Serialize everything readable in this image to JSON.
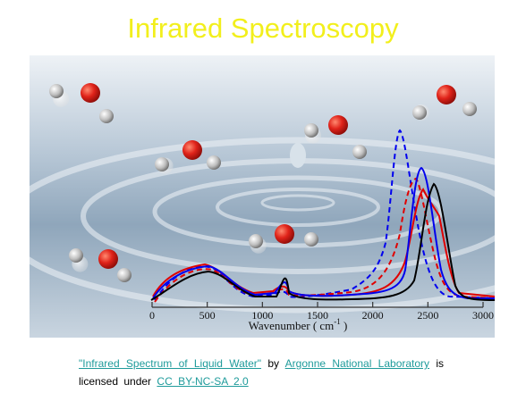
{
  "slide": {
    "title": "Infrared Spectroscopy",
    "figure": {
      "xticks": [
        0,
        500,
        1000,
        1500,
        2000,
        2500,
        3000
      ],
      "xlabel": "Wavenumber ( cm",
      "xlabel_sup": "-1",
      "xlabel_end": " )"
    },
    "caption": {
      "link_title": "\"Infrared Spectrum of Liquid Water\"",
      "by": "by",
      "link_author": "Argonne National Laboratory",
      "licensed": "is licensed under",
      "link_license": "CC BY-NC-SA 2.0"
    }
  }
}
